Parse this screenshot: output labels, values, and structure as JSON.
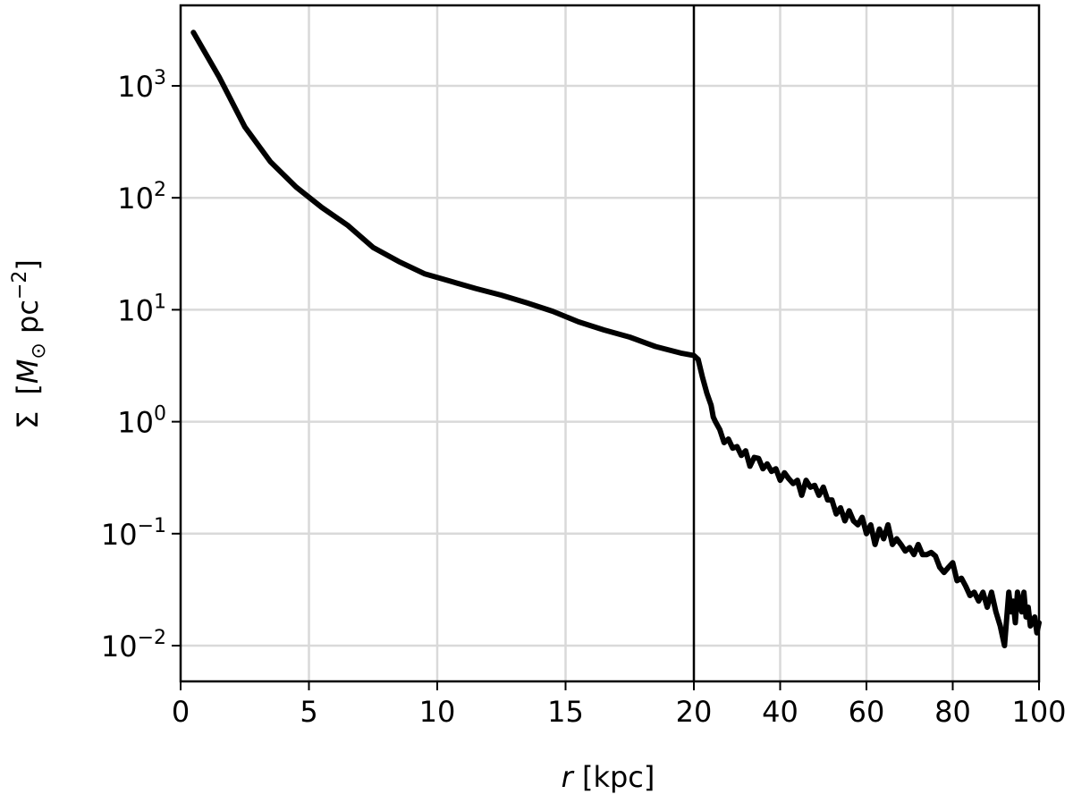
{
  "chart_data": {
    "type": "line",
    "xlabel": {
      "italic": "r",
      "rest": " [kpc]"
    },
    "ylabel": {
      "sigma": "Σ",
      "open": "[",
      "m": "M",
      "sun": "⊙",
      "pc": " pc",
      "exp": "−2",
      "close": "]"
    },
    "x_scale": "piecewise: linear 0–20, linear 20–100 (compressed)",
    "y_scale": "log",
    "xlim": [
      0,
      100
    ],
    "ylim": [
      0.005,
      5000
    ],
    "grid": true,
    "x_ticks": [
      {
        "value": 0,
        "label": "0"
      },
      {
        "value": 5,
        "label": "5"
      },
      {
        "value": 10,
        "label": "10"
      },
      {
        "value": 15,
        "label": "15"
      },
      {
        "value": 20,
        "label": "20"
      },
      {
        "value": 40,
        "label": "40"
      },
      {
        "value": 60,
        "label": "60"
      },
      {
        "value": 80,
        "label": "80"
      },
      {
        "value": 100,
        "label": "100"
      }
    ],
    "y_ticks": [
      {
        "value": 1000,
        "base": "10",
        "exp": "3"
      },
      {
        "value": 100,
        "base": "10",
        "exp": "2"
      },
      {
        "value": 10,
        "base": "10",
        "exp": "1"
      },
      {
        "value": 1,
        "base": "10",
        "exp": "0"
      },
      {
        "value": 0.1,
        "base": "10",
        "exp": "−1"
      },
      {
        "value": 0.01,
        "base": "10",
        "exp": "−2"
      }
    ],
    "vline_x": 20,
    "series": [
      {
        "color": "#000000",
        "points": [
          [
            0.5,
            3000
          ],
          [
            1.5,
            1200
          ],
          [
            2.5,
            430
          ],
          [
            3.5,
            210
          ],
          [
            4.5,
            125
          ],
          [
            5.5,
            82
          ],
          [
            6.5,
            57
          ],
          [
            7.5,
            36
          ],
          [
            8.5,
            27
          ],
          [
            9.5,
            21
          ],
          [
            10.5,
            18
          ],
          [
            11.5,
            15.5
          ],
          [
            12.5,
            13.5
          ],
          [
            13.5,
            11.5
          ],
          [
            14.5,
            9.7
          ],
          [
            15.5,
            7.8
          ],
          [
            16.5,
            6.6
          ],
          [
            17.5,
            5.7
          ],
          [
            18.5,
            4.7
          ],
          [
            19.5,
            4.1
          ],
          [
            20,
            3.9
          ],
          [
            21,
            3.6
          ],
          [
            22,
            2.5
          ],
          [
            23,
            1.8
          ],
          [
            24,
            1.4
          ],
          [
            24.5,
            1.1
          ],
          [
            25,
            1.0
          ],
          [
            26,
            0.85
          ],
          [
            27,
            0.65
          ],
          [
            28,
            0.7
          ],
          [
            29,
            0.58
          ],
          [
            30,
            0.6
          ],
          [
            31,
            0.5
          ],
          [
            32,
            0.55
          ],
          [
            33,
            0.4
          ],
          [
            34,
            0.48
          ],
          [
            35,
            0.47
          ],
          [
            36,
            0.38
          ],
          [
            37,
            0.42
          ],
          [
            38,
            0.36
          ],
          [
            39,
            0.38
          ],
          [
            40,
            0.3
          ],
          [
            41,
            0.35
          ],
          [
            42,
            0.31
          ],
          [
            43,
            0.28
          ],
          [
            44,
            0.3
          ],
          [
            45,
            0.22
          ],
          [
            46,
            0.3
          ],
          [
            47,
            0.26
          ],
          [
            48,
            0.27
          ],
          [
            49,
            0.22
          ],
          [
            50,
            0.26
          ],
          [
            51,
            0.2
          ],
          [
            52,
            0.2
          ],
          [
            53,
            0.15
          ],
          [
            54,
            0.17
          ],
          [
            55,
            0.13
          ],
          [
            56,
            0.16
          ],
          [
            57,
            0.13
          ],
          [
            58,
            0.12
          ],
          [
            59,
            0.14
          ],
          [
            60,
            0.1
          ],
          [
            61,
            0.12
          ],
          [
            62,
            0.08
          ],
          [
            63,
            0.11
          ],
          [
            64,
            0.09
          ],
          [
            65,
            0.12
          ],
          [
            66,
            0.08
          ],
          [
            67,
            0.09
          ],
          [
            68,
            0.08
          ],
          [
            69,
            0.07
          ],
          [
            70,
            0.075
          ],
          [
            71,
            0.065
          ],
          [
            72,
            0.08
          ],
          [
            73,
            0.065
          ],
          [
            74,
            0.065
          ],
          [
            75,
            0.068
          ],
          [
            76,
            0.063
          ],
          [
            77,
            0.05
          ],
          [
            78,
            0.045
          ],
          [
            79,
            0.05
          ],
          [
            80,
            0.055
          ],
          [
            81,
            0.038
          ],
          [
            82,
            0.04
          ],
          [
            83,
            0.034
          ],
          [
            84,
            0.028
          ],
          [
            85,
            0.03
          ],
          [
            86,
            0.025
          ],
          [
            87,
            0.03
          ],
          [
            88,
            0.022
          ],
          [
            89,
            0.03
          ],
          [
            90,
            0.02
          ],
          [
            91,
            0.015
          ],
          [
            92,
            0.01
          ],
          [
            93,
            0.03
          ],
          [
            93.5,
            0.02
          ],
          [
            94,
            0.025
          ],
          [
            94.5,
            0.016
          ],
          [
            95,
            0.03
          ],
          [
            96,
            0.02
          ],
          [
            96.5,
            0.03
          ],
          [
            97,
            0.018
          ],
          [
            97.5,
            0.022
          ],
          [
            98,
            0.015
          ],
          [
            99,
            0.018
          ],
          [
            99.5,
            0.013
          ],
          [
            100,
            0.016
          ]
        ]
      }
    ]
  }
}
